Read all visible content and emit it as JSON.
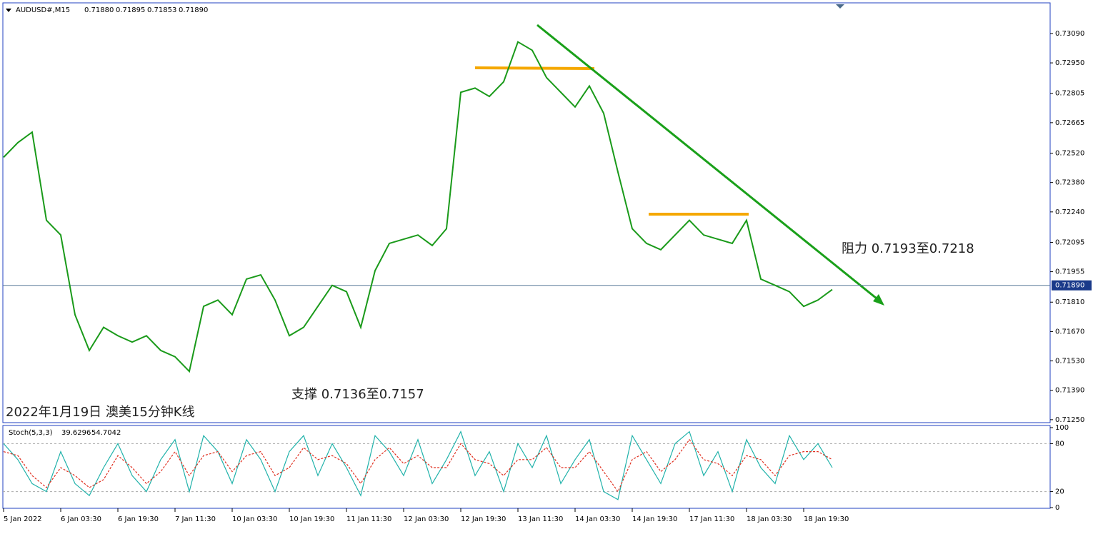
{
  "chart_data": [
    {
      "type": "line",
      "title": "AUDUSD#,M15",
      "ohlc": [
        {
          "value": 0.7188,
          "label": "0.71880"
        },
        {
          "value": 0.71895,
          "label": "0.71895"
        },
        {
          "value": 0.71853,
          "label": "0.71853"
        },
        {
          "value": 0.7189,
          "label": "0.71890"
        }
      ],
      "last_price": {
        "value": 0.7189,
        "label": "0.71890"
      },
      "annotations": [
        "阻力 0.7193至0.7218",
        "支撑 0.7136至0.7157",
        "2022年1月19日 澳美15分钟K线"
      ],
      "categories": [
        "5 Jan 2022",
        null,
        null,
        null,
        "6 Jan 03:30",
        null,
        null,
        null,
        "6 Jan 19:30",
        null,
        null,
        null,
        "7 Jan 11:30",
        null,
        null,
        null,
        "10 Jan 03:30",
        null,
        null,
        null,
        "10 Jan 19:30",
        null,
        null,
        null,
        "11 Jan 11:30",
        null,
        null,
        null,
        "12 Jan 03:30",
        null,
        null,
        null,
        "12 Jan 19:30",
        null,
        null,
        null,
        "13 Jan 11:30",
        null,
        null,
        null,
        "14 Jan 03:30",
        null,
        null,
        null,
        "14 Jan 19:30",
        null,
        null,
        null,
        "17 Jan 11:30",
        null,
        null,
        null,
        "18 Jan 03:30",
        null,
        null,
        null,
        "18 Jan 19:30",
        null,
        null
      ],
      "series": [
        {
          "color": "#1a9a1a",
          "values": [
            0.725,
            0.7257,
            0.7262,
            0.722,
            0.7213,
            0.7175,
            0.7158,
            0.7169,
            0.7165,
            0.7162,
            0.7165,
            0.7158,
            0.7155,
            0.7148,
            0.7179,
            0.7182,
            0.7175,
            0.7192,
            0.7194,
            0.7182,
            0.7165,
            0.7169,
            0.7179,
            0.7189,
            0.7186,
            0.7169,
            0.7196,
            0.7209,
            0.7211,
            0.7213,
            0.7208,
            0.7216,
            0.7281,
            0.7283,
            0.7279,
            0.7286,
            0.7305,
            0.7301,
            0.7288,
            0.7281,
            0.7274,
            0.7284,
            0.7271,
            0.7243,
            0.7216,
            0.7209,
            0.7206,
            0.7213,
            0.722,
            0.7213,
            0.7211,
            0.7209,
            0.722,
            0.7192,
            0.7189,
            0.7186,
            0.7179,
            0.7182,
            0.7187
          ]
        }
      ],
      "ylim": [
        0.71236,
        0.73236
      ],
      "yticks": [
        {
          "value": 0.7309,
          "label": "0.73090"
        },
        {
          "value": 0.7295,
          "label": "0.72950"
        },
        {
          "value": 0.72805,
          "label": "0.72805"
        },
        {
          "value": 0.72665,
          "label": "0.72665"
        },
        {
          "value": 0.7252,
          "label": "0.72520"
        },
        {
          "value": 0.7238,
          "label": "0.72380"
        },
        {
          "value": 0.7224,
          "label": "0.72240"
        },
        {
          "value": 0.72095,
          "label": "0.72095"
        },
        {
          "value": 0.71955,
          "label": "0.71955"
        },
        {
          "value": 0.7181,
          "label": "0.71810"
        },
        {
          "value": 0.7167,
          "label": "0.71670"
        },
        {
          "value": 0.7153,
          "label": "0.71530"
        },
        {
          "value": 0.7139,
          "label": "0.71390"
        },
        {
          "value": 0.7125,
          "label": "0.71250"
        }
      ]
    },
    {
      "type": "line",
      "title": "Stoch(5,3,3)",
      "stoch_values": [
        39.6296,
        54.7042
      ],
      "series": [
        {
          "color": "#20b2aa",
          "values": [
            80,
            60,
            30,
            20,
            70,
            30,
            15,
            50,
            80,
            40,
            20,
            60,
            85,
            20,
            90,
            70,
            30,
            85,
            60,
            20,
            70,
            90,
            40,
            80,
            50,
            15,
            90,
            70,
            40,
            85,
            30,
            60,
            95,
            40,
            70,
            20,
            80,
            50,
            90,
            30,
            60,
            85,
            20,
            10,
            90,
            60,
            30,
            80,
            95,
            40,
            70,
            20,
            85,
            50,
            30,
            90,
            60,
            80,
            50
          ]
        },
        {
          "color": "#e03020",
          "values": [
            70,
            65,
            40,
            25,
            50,
            40,
            25,
            35,
            65,
            50,
            30,
            45,
            70,
            40,
            65,
            70,
            45,
            65,
            70,
            40,
            50,
            75,
            60,
            65,
            55,
            30,
            60,
            75,
            55,
            65,
            50,
            50,
            80,
            60,
            55,
            40,
            60,
            60,
            75,
            50,
            50,
            70,
            45,
            20,
            60,
            70,
            45,
            60,
            85,
            60,
            55,
            40,
            65,
            60,
            40,
            65,
            70,
            70,
            60
          ]
        }
      ],
      "ylim": [
        0,
        100
      ],
      "yticks": [
        100,
        80,
        20,
        0
      ]
    }
  ]
}
